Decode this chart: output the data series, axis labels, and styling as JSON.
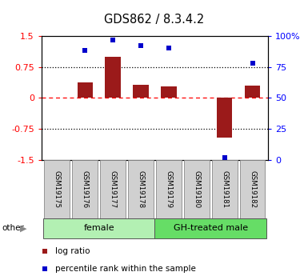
{
  "title": "GDS862 / 8.3.4.2",
  "samples": [
    "GSM19175",
    "GSM19176",
    "GSM19177",
    "GSM19178",
    "GSM19179",
    "GSM19180",
    "GSM19181",
    "GSM19182"
  ],
  "log_ratio": [
    0.0,
    0.38,
    1.0,
    0.32,
    0.28,
    0.0,
    -0.95,
    0.3
  ],
  "percentile_rank": [
    null,
    88,
    97,
    92,
    90,
    null,
    2,
    78
  ],
  "groups": [
    {
      "label": "female",
      "start": 0,
      "end": 3,
      "color": "#b3f0b3"
    },
    {
      "label": "GH-treated male",
      "start": 4,
      "end": 7,
      "color": "#66dd66"
    }
  ],
  "ylim_left": [
    -1.5,
    1.5
  ],
  "yticks_left": [
    -1.5,
    -0.75,
    0,
    0.75,
    1.5
  ],
  "ytick_labels_left": [
    "-1.5",
    "-0.75",
    "0",
    "0.75",
    "1.5"
  ],
  "ytick_labels_right": [
    "0",
    "25",
    "50",
    "75",
    "100%"
  ],
  "bar_color": "#9b1a1a",
  "dot_color": "#0000cc",
  "other_label": "other",
  "legend_items": [
    "log ratio",
    "percentile rank within the sample"
  ]
}
